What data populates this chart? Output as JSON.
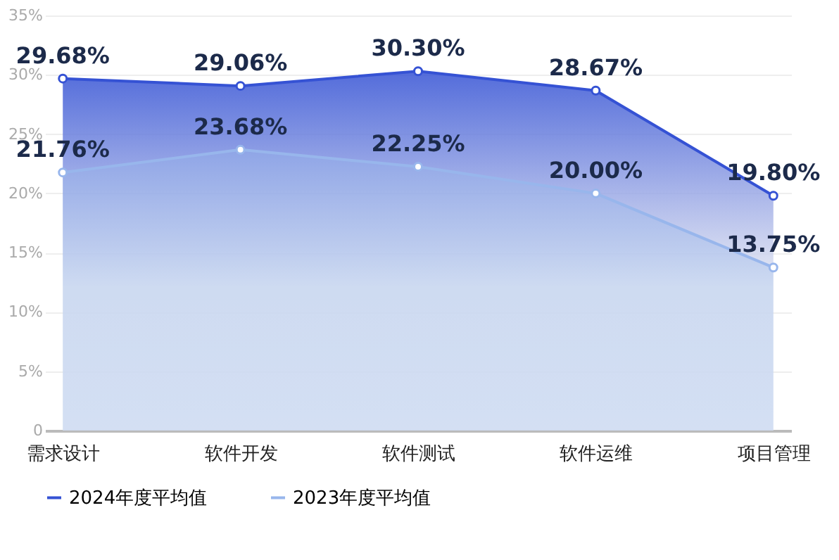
{
  "chart_data": {
    "type": "area",
    "categories": [
      "需求设计",
      "软件开发",
      "软件测试",
      "软件运维",
      "项目管理"
    ],
    "series": [
      {
        "name": "2024年度平均值",
        "color": "#3552d4",
        "values": [
          29.68,
          29.06,
          30.3,
          28.67,
          19.8
        ],
        "value_labels": [
          "29.68%",
          "29.06%",
          "30.30%",
          "28.67%",
          "19.80%"
        ]
      },
      {
        "name": "2023年度平均值",
        "color": "#98b6ec",
        "values": [
          21.76,
          23.68,
          22.25,
          20.0,
          13.75
        ],
        "value_labels": [
          "21.76%",
          "23.68%",
          "22.25%",
          "20.00%",
          "13.75%"
        ]
      }
    ],
    "ylim": [
      0,
      35
    ],
    "yticks": [
      0,
      {
        "value": 5,
        "label": "5%"
      },
      {
        "value": 10,
        "label": "10%"
      },
      {
        "value": 15,
        "label": "15%"
      },
      {
        "value": 20,
        "label": "20%"
      },
      {
        "value": 25,
        "label": "25%"
      },
      {
        "value": 30,
        "label": "30%"
      },
      {
        "value": 35,
        "label": "35%"
      }
    ],
    "grid": "y",
    "legend": "bottom",
    "marker": "circle",
    "line_style": "solid"
  }
}
